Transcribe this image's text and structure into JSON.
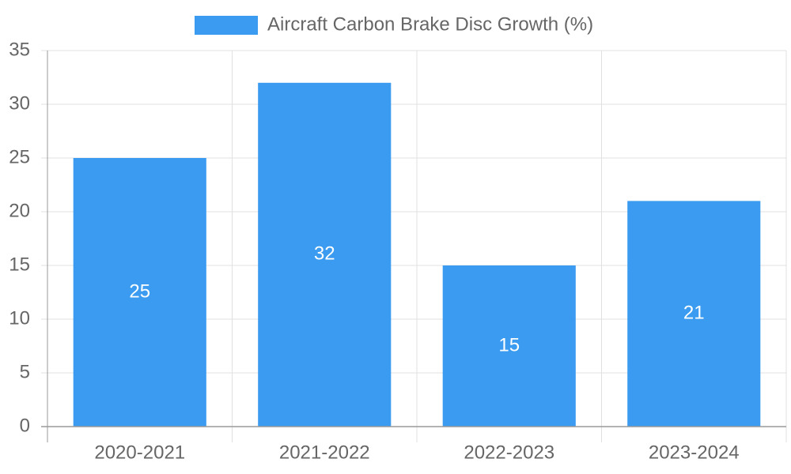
{
  "chart_data": {
    "type": "bar",
    "categories": [
      "2020-2021",
      "2021-2022",
      "2022-2023",
      "2023-2024"
    ],
    "series": [
      {
        "name": "Aircraft Carbon Brake Disc Growth (%)",
        "values": [
          25,
          32,
          15,
          21
        ],
        "color": "#3a9bf0"
      }
    ],
    "ylim": [
      0,
      35
    ],
    "yticks": [
      0,
      5,
      10,
      15,
      20,
      25,
      30,
      35
    ],
    "grid": true,
    "legend_position": "top-center",
    "data_labels": true,
    "xlabel": "",
    "ylabel": "",
    "colors": {
      "grid": "#e0e0e0",
      "axis": "#9a9a9a",
      "text": "#666666",
      "label": "#ffffff"
    }
  }
}
